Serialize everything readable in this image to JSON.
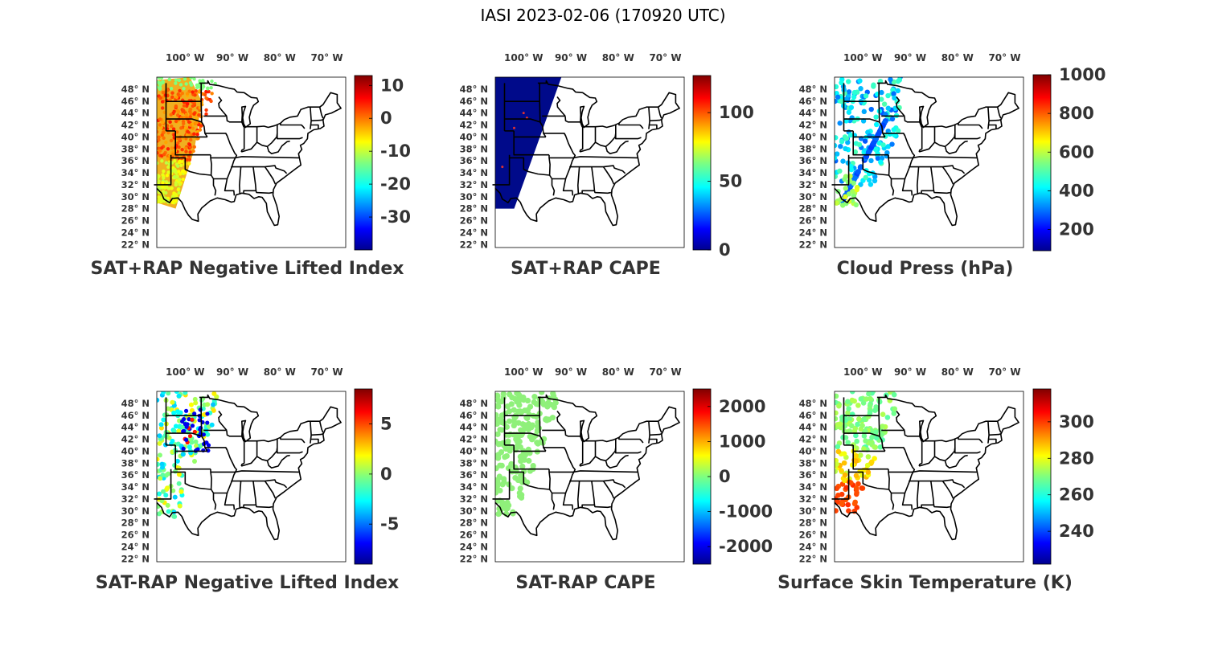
{
  "figure": {
    "title": "IASI 2023-02-06 (170920 UTC)"
  },
  "lon_ticks": [
    "100° W",
    "90° W",
    "80° W",
    "70° W"
  ],
  "lat_ticks": [
    "48° N",
    "46° N",
    "44° N",
    "42° N",
    "40° N",
    "38° N",
    "36° N",
    "34° N",
    "32° N",
    "30° N",
    "28° N",
    "26° N",
    "24° N",
    "22° N"
  ],
  "panels": [
    {
      "id": "sat-rap-neg-lifted-index",
      "title": "SAT+RAP Negative Lifted Index",
      "colorbar": {
        "min": -40,
        "max": 13,
        "ticks": [
          "10",
          "0",
          "-10",
          "-20",
          "-30"
        ],
        "tick_values": [
          10,
          0,
          -10,
          -20,
          -30
        ]
      },
      "swath": "full-left",
      "dominant_color": "#f5b11d"
    },
    {
      "id": "sat-rap-cape",
      "title": "SAT+RAP CAPE",
      "colorbar": {
        "min": 0,
        "max": 127,
        "ticks": [
          "100",
          "50",
          "0"
        ],
        "tick_values": [
          100,
          50,
          0
        ]
      },
      "swath": "diagonal",
      "dominant_color": "#000a8a"
    },
    {
      "id": "cloud-press",
      "title": "Cloud Press (hPa)",
      "colorbar": {
        "min": 90,
        "max": 1000,
        "ticks": [
          "1000",
          "800",
          "600",
          "400",
          "200"
        ],
        "tick_values": [
          1000,
          800,
          600,
          400,
          200
        ]
      },
      "swath": "sparse-blue",
      "dominant_color": "#2d7fe8"
    },
    {
      "id": "sat-minus-rap-neg-lifted-index",
      "title": "SAT-RAP Negative Lifted Index",
      "colorbar": {
        "min": -9,
        "max": 8.5,
        "ticks": [
          "5",
          "0",
          "-5"
        ],
        "tick_values": [
          5,
          0,
          -5
        ]
      },
      "swath": "scatter-mixed",
      "dominant_color": "#49c8f0"
    },
    {
      "id": "sat-minus-rap-cape",
      "title": "SAT-RAP CAPE",
      "colorbar": {
        "min": -2500,
        "max": 2500,
        "ticks": [
          "2000",
          "1000",
          "0",
          "-1000",
          "-2000"
        ],
        "tick_values": [
          2000,
          1000,
          0,
          -1000,
          -2000
        ]
      },
      "swath": "scatter-green",
      "dominant_color": "#8ff07a"
    },
    {
      "id": "surface-skin-temperature",
      "title": "Surface Skin Temperature (K)",
      "colorbar": {
        "min": 222,
        "max": 318,
        "ticks": [
          "300",
          "280",
          "260",
          "240"
        ],
        "tick_values": [
          300,
          280,
          260,
          240
        ]
      },
      "swath": "scatter-temp",
      "dominant_color": "#8fe86a"
    }
  ]
}
